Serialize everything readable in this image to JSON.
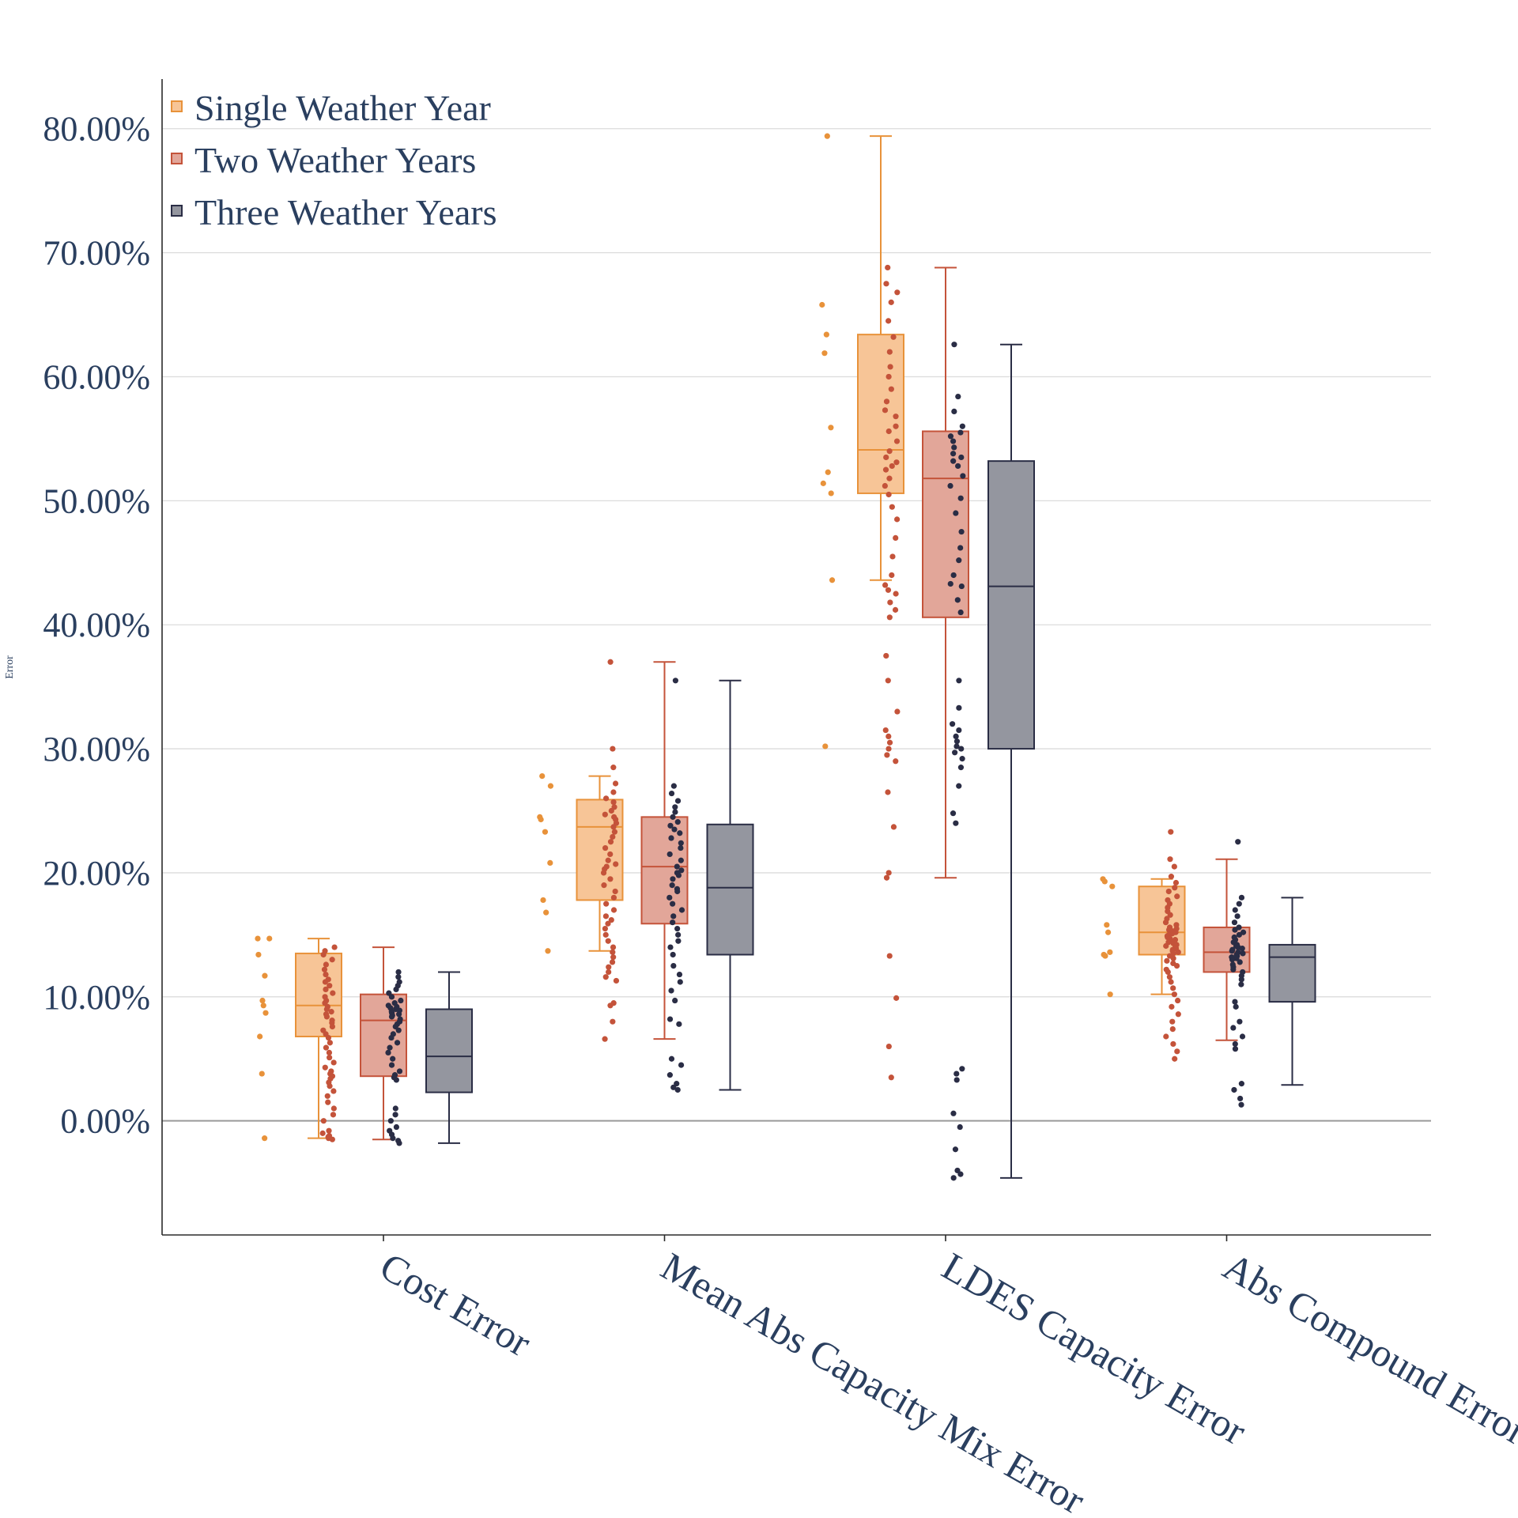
{
  "chart_data": {
    "type": "box",
    "ylabel": "Error",
    "xlabel": "",
    "ylim": [
      -0.092,
      0.84
    ],
    "yticks": [
      0,
      0.1,
      0.2,
      0.3,
      0.4,
      0.5,
      0.6,
      0.7,
      0.8
    ],
    "ytick_labels": [
      "0.00%",
      "10.00%",
      "20.00%",
      "30.00%",
      "40.00%",
      "50.00%",
      "60.00%",
      "70.00%",
      "80.00%"
    ],
    "grid": true,
    "legend_position": "top-left",
    "categories": [
      "Cost Error",
      "Mean Abs Capacity Mix Error",
      "LDES Capacity Error",
      "Abs Compound Error"
    ],
    "series": [
      {
        "name": "Single Weather Year",
        "color": "#e8923a",
        "fill": "#f7c597",
        "boxes": [
          {
            "min": -0.014,
            "q1": 0.068,
            "median": 0.093,
            "q3": 0.135,
            "max": 0.147
          },
          {
            "min": 0.137,
            "q1": 0.178,
            "median": 0.237,
            "q3": 0.259,
            "max": 0.278
          },
          {
            "min": 0.436,
            "q1": 0.506,
            "median": 0.541,
            "q3": 0.634,
            "max": 0.794
          },
          {
            "min": 0.102,
            "q1": 0.134,
            "median": 0.152,
            "q3": 0.189,
            "max": 0.195
          }
        ],
        "points": [
          [
            0.147,
            0.147,
            0.134,
            0.117,
            0.097,
            0.093,
            0.087,
            0.068,
            0.038,
            -0.014
          ],
          [
            0.278,
            0.27,
            0.245,
            0.243,
            0.233,
            0.208,
            0.178,
            0.168,
            0.137
          ],
          [
            0.794,
            0.658,
            0.634,
            0.619,
            0.559,
            0.523,
            0.514,
            0.506,
            0.436,
            0.302
          ],
          [
            0.195,
            0.193,
            0.189,
            0.158,
            0.152,
            0.136,
            0.134,
            0.133,
            0.102
          ]
        ]
      },
      {
        "name": "Two Weather Years",
        "color": "#c4533a",
        "fill": "#e2a699",
        "boxes": [
          {
            "min": -0.015,
            "q1": 0.036,
            "median": 0.081,
            "q3": 0.102,
            "max": 0.14
          },
          {
            "min": 0.066,
            "q1": 0.159,
            "median": 0.205,
            "q3": 0.245,
            "max": 0.37
          },
          {
            "min": 0.196,
            "q1": 0.406,
            "median": 0.518,
            "q3": 0.556,
            "max": 0.688
          },
          {
            "min": 0.065,
            "q1": 0.12,
            "median": 0.136,
            "q3": 0.156,
            "max": 0.211
          }
        ],
        "points": [
          [
            0.14,
            0.137,
            0.134,
            0.13,
            0.126,
            0.122,
            0.118,
            0.114,
            0.112,
            0.109,
            0.106,
            0.103,
            0.1,
            0.097,
            0.095,
            0.092,
            0.09,
            0.088,
            0.086,
            0.084,
            0.081,
            0.079,
            0.076,
            0.073,
            0.07,
            0.067,
            0.063,
            0.059,
            0.055,
            0.051,
            0.047,
            0.043,
            0.04,
            0.038,
            0.036,
            0.034,
            0.031,
            0.028,
            0.024,
            0.02,
            0.015,
            0.01,
            0.005,
            0.0,
            -0.008,
            -0.01,
            -0.012,
            -0.013,
            -0.014,
            -0.015
          ],
          [
            0.37,
            0.3,
            0.285,
            0.272,
            0.265,
            0.26,
            0.257,
            0.253,
            0.25,
            0.247,
            0.245,
            0.243,
            0.24,
            0.237,
            0.233,
            0.229,
            0.225,
            0.22,
            0.215,
            0.21,
            0.207,
            0.205,
            0.203,
            0.2,
            0.195,
            0.19,
            0.185,
            0.18,
            0.175,
            0.17,
            0.165,
            0.162,
            0.159,
            0.155,
            0.15,
            0.145,
            0.14,
            0.136,
            0.132,
            0.128,
            0.124,
            0.12,
            0.116,
            0.113,
            0.095,
            0.093,
            0.08,
            0.066
          ],
          [
            0.688,
            0.675,
            0.668,
            0.66,
            0.645,
            0.632,
            0.62,
            0.608,
            0.6,
            0.59,
            0.58,
            0.573,
            0.568,
            0.56,
            0.556,
            0.548,
            0.54,
            0.535,
            0.531,
            0.528,
            0.525,
            0.518,
            0.512,
            0.505,
            0.495,
            0.485,
            0.47,
            0.455,
            0.44,
            0.432,
            0.428,
            0.425,
            0.418,
            0.412,
            0.406,
            0.375,
            0.355,
            0.33,
            0.315,
            0.31,
            0.305,
            0.3,
            0.295,
            0.29,
            0.265,
            0.237,
            0.2,
            0.196,
            0.133,
            0.099,
            0.06,
            0.035
          ],
          [
            0.233,
            0.211,
            0.205,
            0.197,
            0.192,
            0.188,
            0.185,
            0.181,
            0.178,
            0.175,
            0.172,
            0.169,
            0.166,
            0.163,
            0.16,
            0.158,
            0.156,
            0.155,
            0.154,
            0.153,
            0.152,
            0.151,
            0.15,
            0.149,
            0.148,
            0.147,
            0.146,
            0.145,
            0.144,
            0.143,
            0.142,
            0.141,
            0.14,
            0.139,
            0.138,
            0.137,
            0.136,
            0.135,
            0.133,
            0.131,
            0.129,
            0.127,
            0.125,
            0.122,
            0.12,
            0.116,
            0.112,
            0.107,
            0.102,
            0.097,
            0.092,
            0.086,
            0.08,
            0.074,
            0.068,
            0.062,
            0.056,
            0.05
          ]
        ]
      },
      {
        "name": "Three Weather Years",
        "color": "#2a2d45",
        "fill": "#94969f",
        "boxes": [
          {
            "min": -0.018,
            "q1": 0.023,
            "median": 0.052,
            "q3": 0.09,
            "max": 0.12
          },
          {
            "min": 0.025,
            "q1": 0.134,
            "median": 0.188,
            "q3": 0.239,
            "max": 0.355
          },
          {
            "min": -0.046,
            "q1": 0.3,
            "median": 0.431,
            "q3": 0.532,
            "max": 0.626
          },
          {
            "min": 0.029,
            "q1": 0.096,
            "median": 0.132,
            "q3": 0.142,
            "max": 0.18
          }
        ],
        "points": [
          [
            0.12,
            0.116,
            0.112,
            0.109,
            0.106,
            0.103,
            0.1,
            0.097,
            0.095,
            0.093,
            0.092,
            0.091,
            0.09,
            0.089,
            0.088,
            0.087,
            0.086,
            0.085,
            0.084,
            0.082,
            0.08,
            0.078,
            0.076,
            0.073,
            0.07,
            0.067,
            0.063,
            0.059,
            0.055,
            0.05,
            0.045,
            0.04,
            0.037,
            0.035,
            0.033,
            0.01,
            0.005,
            0.0,
            -0.005,
            -0.008,
            -0.011,
            -0.014,
            -0.016,
            -0.018
          ],
          [
            0.355,
            0.27,
            0.264,
            0.258,
            0.253,
            0.249,
            0.245,
            0.241,
            0.238,
            0.235,
            0.232,
            0.228,
            0.224,
            0.22,
            0.215,
            0.21,
            0.205,
            0.202,
            0.2,
            0.198,
            0.195,
            0.19,
            0.187,
            0.185,
            0.18,
            0.175,
            0.17,
            0.165,
            0.16,
            0.155,
            0.15,
            0.145,
            0.14,
            0.134,
            0.125,
            0.118,
            0.112,
            0.105,
            0.097,
            0.082,
            0.078,
            0.05,
            0.045,
            0.037,
            0.03,
            0.027,
            0.025
          ],
          [
            0.626,
            0.584,
            0.572,
            0.56,
            0.555,
            0.552,
            0.548,
            0.543,
            0.538,
            0.535,
            0.532,
            0.528,
            0.52,
            0.512,
            0.502,
            0.49,
            0.475,
            0.462,
            0.452,
            0.44,
            0.433,
            0.431,
            0.42,
            0.41,
            0.355,
            0.333,
            0.32,
            0.315,
            0.31,
            0.306,
            0.302,
            0.3,
            0.297,
            0.292,
            0.285,
            0.27,
            0.248,
            0.24,
            0.042,
            0.038,
            0.033,
            0.006,
            -0.005,
            -0.023,
            -0.04,
            -0.043,
            -0.046
          ],
          [
            0.225,
            0.18,
            0.175,
            0.17,
            0.165,
            0.16,
            0.156,
            0.154,
            0.152,
            0.15,
            0.148,
            0.146,
            0.144,
            0.142,
            0.141,
            0.14,
            0.139,
            0.138,
            0.137,
            0.136,
            0.135,
            0.134,
            0.133,
            0.132,
            0.131,
            0.13,
            0.128,
            0.126,
            0.124,
            0.122,
            0.12,
            0.117,
            0.114,
            0.11,
            0.096,
            0.092,
            0.08,
            0.075,
            0.068,
            0.062,
            0.058,
            0.03,
            0.025,
            0.018,
            0.013
          ]
        ]
      }
    ]
  }
}
